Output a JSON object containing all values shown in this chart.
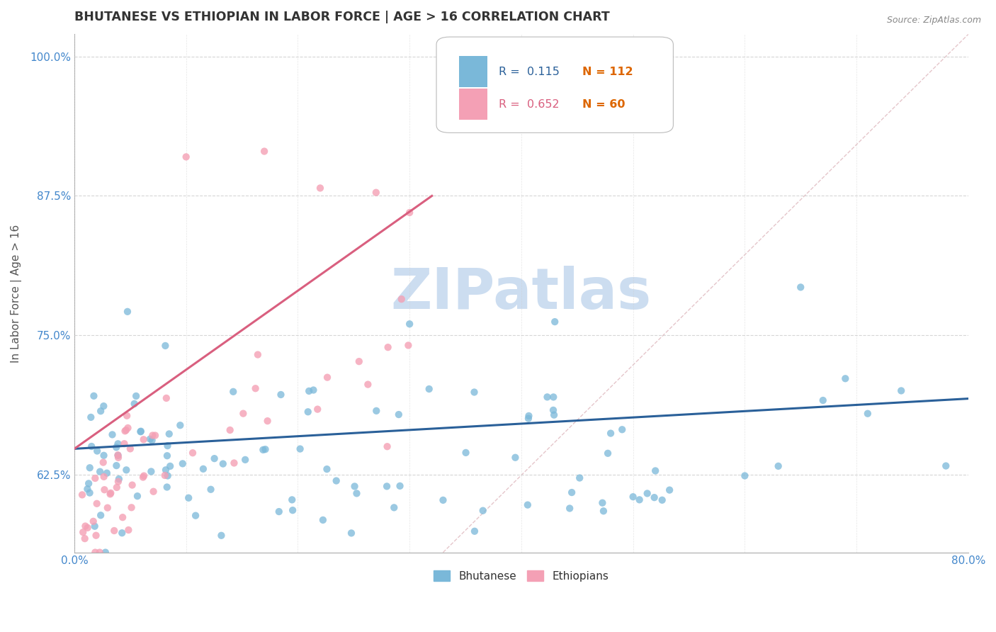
{
  "title": "BHUTANESE VS ETHIOPIAN IN LABOR FORCE | AGE > 16 CORRELATION CHART",
  "source_text": "Source: ZipAtlas.com",
  "ylabel": "In Labor Force | Age > 16",
  "xlim": [
    0.0,
    0.8
  ],
  "ylim": [
    0.555,
    1.02
  ],
  "xticks": [
    0.0,
    0.1,
    0.2,
    0.3,
    0.4,
    0.5,
    0.6,
    0.7,
    0.8
  ],
  "xticklabels": [
    "0.0%",
    "",
    "",
    "",
    "",
    "",
    "",
    "",
    "80.0%"
  ],
  "yticks": [
    0.625,
    0.75,
    0.875,
    1.0
  ],
  "yticklabels": [
    "62.5%",
    "75.0%",
    "87.5%",
    "100.0%"
  ],
  "blue_R": "0.115",
  "blue_N": "112",
  "pink_R": "0.652",
  "pink_N": "60",
  "blue_color": "#7ab8d9",
  "pink_color": "#f4a0b5",
  "blue_line_color": "#2a6099",
  "pink_line_color": "#d95f7f",
  "grid_color": "#cccccc",
  "background_color": "#ffffff",
  "watermark": "ZIPatlas",
  "watermark_color": "#ccddf0",
  "title_color": "#333333",
  "axis_label_color": "#555555",
  "tick_label_color": "#4488cc",
  "legend_label_blue": "Bhutanese",
  "legend_label_pink": "Ethiopians",
  "blue_trend_x": [
    0.0,
    0.8
  ],
  "blue_trend_y": [
    0.648,
    0.693
  ],
  "pink_trend_x": [
    0.0,
    0.32
  ],
  "pink_trend_y": [
    0.648,
    0.875
  ],
  "ref_line_x": [
    0.33,
    0.8
  ],
  "ref_line_y": [
    0.555,
    1.02
  ]
}
